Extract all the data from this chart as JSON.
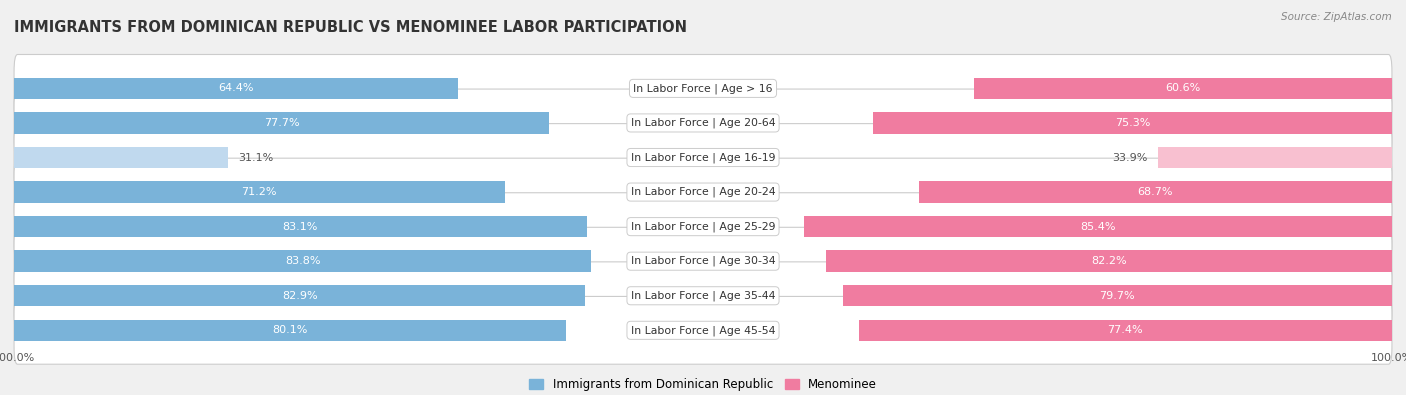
{
  "title": "IMMIGRANTS FROM DOMINICAN REPUBLIC VS MENOMINEE LABOR PARTICIPATION",
  "source": "Source: ZipAtlas.com",
  "categories": [
    "In Labor Force | Age > 16",
    "In Labor Force | Age 20-64",
    "In Labor Force | Age 16-19",
    "In Labor Force | Age 20-24",
    "In Labor Force | Age 25-29",
    "In Labor Force | Age 30-34",
    "In Labor Force | Age 35-44",
    "In Labor Force | Age 45-54"
  ],
  "dominican": [
    64.4,
    77.7,
    31.1,
    71.2,
    83.1,
    83.8,
    82.9,
    80.1
  ],
  "menominee": [
    60.6,
    75.3,
    33.9,
    68.7,
    85.4,
    82.2,
    79.7,
    77.4
  ],
  "dominican_color": "#7ab3d9",
  "dominican_color_light": "#c0d9ee",
  "menominee_color": "#f07ca0",
  "menominee_color_light": "#f8c0d0",
  "bar_height": 0.62,
  "background_color": "#f0f0f0",
  "label_fontsize": 8.0,
  "cat_fontsize": 7.8,
  "title_fontsize": 10.5,
  "legend_label_dominican": "Immigrants from Dominican Republic",
  "legend_label_menominee": "Menominee"
}
